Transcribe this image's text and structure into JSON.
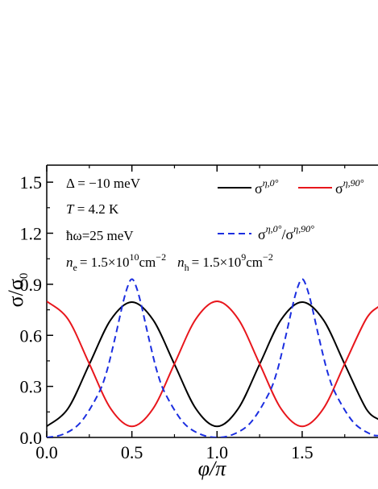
{
  "chart_data": {
    "type": "line",
    "xlabel": "φ/π",
    "ylabel": "σ/σ₀",
    "xlim": [
      0.0,
      1.95
    ],
    "ylim": [
      0.0,
      1.6
    ],
    "x_ticks": [
      "0.0",
      "0.5",
      "1.0",
      "1.5"
    ],
    "y_ticks": [
      "0.0",
      "0.3",
      "0.6",
      "0.9",
      "1.2",
      "1.5"
    ],
    "x_tick_values": [
      0.0,
      0.5,
      1.0,
      1.5
    ],
    "y_tick_values": [
      0.0,
      0.3,
      0.6,
      0.9,
      1.2,
      1.5
    ],
    "grid": false,
    "legend_position": "top-right",
    "annotations": {
      "delta": "Δ = −10 meV",
      "temperature_symbol": "T",
      "temperature_value": " = 4.2 K",
      "photon_energy": "ħω=25 meV",
      "n_e_symbol": "n",
      "n_e_sub": "e",
      "n_e_value": "= 1.5×10",
      "n_e_exp": "10",
      "n_e_unit": "cm",
      "n_e_unit_exp": "−2",
      "n_h_symbol": "n",
      "n_h_sub": "h",
      "n_h_value": "= 1.5×10",
      "n_h_exp": "9",
      "n_h_unit": "cm",
      "n_h_unit_exp": "−2"
    },
    "series": [
      {
        "label_base": "σ",
        "label_sup": "η,0°",
        "color": "#000000",
        "dash": "solid",
        "x": [
          0,
          0.125,
          0.25,
          0.375,
          0.5,
          0.625,
          0.75,
          0.875,
          1.0,
          1.125,
          1.25,
          1.375,
          1.5,
          1.625,
          1.75,
          1.875,
          1.95
        ],
        "y": [
          0.065,
          0.17,
          0.43,
          0.69,
          0.795,
          0.69,
          0.43,
          0.17,
          0.065,
          0.17,
          0.43,
          0.69,
          0.795,
          0.69,
          0.43,
          0.17,
          0.105
        ]
      },
      {
        "label_base": "σ",
        "label_sup": "η,90°",
        "color": "#e8161c",
        "dash": "solid",
        "x": [
          0,
          0.125,
          0.25,
          0.375,
          0.5,
          0.625,
          0.75,
          0.875,
          1.0,
          1.125,
          1.25,
          1.375,
          1.5,
          1.625,
          1.75,
          1.875,
          1.95
        ],
        "y": [
          0.8,
          0.695,
          0.433,
          0.17,
          0.065,
          0.17,
          0.433,
          0.695,
          0.8,
          0.695,
          0.433,
          0.17,
          0.065,
          0.17,
          0.433,
          0.695,
          0.77
        ]
      },
      {
        "label_base": "σ",
        "label_sup": "η,0°",
        "label_base2": "/σ",
        "label_sup2": "η,90°",
        "color": "#1b2ee0",
        "dash": "dashed",
        "x": [
          0,
          0.1,
          0.2,
          0.3,
          0.35,
          0.4,
          0.45,
          0.48,
          0.5,
          0.52,
          0.55,
          0.6,
          0.65,
          0.7,
          0.8,
          0.9,
          1.0,
          1.1,
          1.2,
          1.3,
          1.35,
          1.4,
          1.45,
          1.48,
          1.5,
          1.52,
          1.55,
          1.6,
          1.65,
          1.7,
          1.8,
          1.9,
          1.95
        ],
        "y": [
          0.0,
          0.02,
          0.09,
          0.25,
          0.38,
          0.58,
          0.8,
          0.9,
          0.93,
          0.9,
          0.8,
          0.58,
          0.38,
          0.25,
          0.09,
          0.02,
          0.0,
          0.02,
          0.09,
          0.25,
          0.38,
          0.58,
          0.8,
          0.9,
          0.93,
          0.9,
          0.8,
          0.58,
          0.38,
          0.25,
          0.09,
          0.02,
          0.01
        ]
      }
    ]
  }
}
